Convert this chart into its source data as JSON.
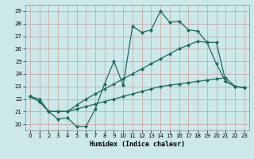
{
  "xlabel": "Humidex (Indice chaleur)",
  "bg_color": "#cce8e8",
  "grid_color": "#b0d0d0",
  "line_color": "#1a6b60",
  "xlim": [
    -0.5,
    23.5
  ],
  "ylim": [
    19.5,
    29.5
  ],
  "xticks": [
    0,
    1,
    2,
    3,
    4,
    5,
    6,
    7,
    8,
    9,
    10,
    11,
    12,
    13,
    14,
    15,
    16,
    17,
    18,
    19,
    20,
    21,
    22,
    23
  ],
  "yticks": [
    20,
    21,
    22,
    23,
    24,
    25,
    26,
    27,
    28,
    29
  ],
  "series": [
    [
      22.2,
      22.0,
      21.0,
      20.4,
      20.5,
      19.8,
      19.8,
      21.2,
      23.2,
      25.0,
      23.1,
      27.8,
      27.3,
      27.5,
      29.0,
      28.1,
      28.2,
      27.5,
      27.4,
      26.5,
      24.8,
      23.4,
      23.0,
      22.9
    ],
    [
      22.2,
      21.8,
      21.0,
      21.0,
      21.0,
      21.5,
      22.0,
      22.4,
      22.8,
      23.2,
      23.6,
      24.0,
      24.4,
      24.8,
      25.2,
      25.6,
      26.0,
      26.3,
      26.6,
      26.5,
      26.5,
      23.4,
      23.0,
      22.9
    ],
    [
      22.2,
      21.8,
      21.0,
      21.0,
      21.0,
      21.2,
      21.4,
      21.6,
      21.8,
      22.0,
      22.2,
      22.4,
      22.6,
      22.8,
      23.0,
      23.1,
      23.2,
      23.3,
      23.4,
      23.5,
      23.6,
      23.7,
      23.0,
      22.9
    ]
  ]
}
